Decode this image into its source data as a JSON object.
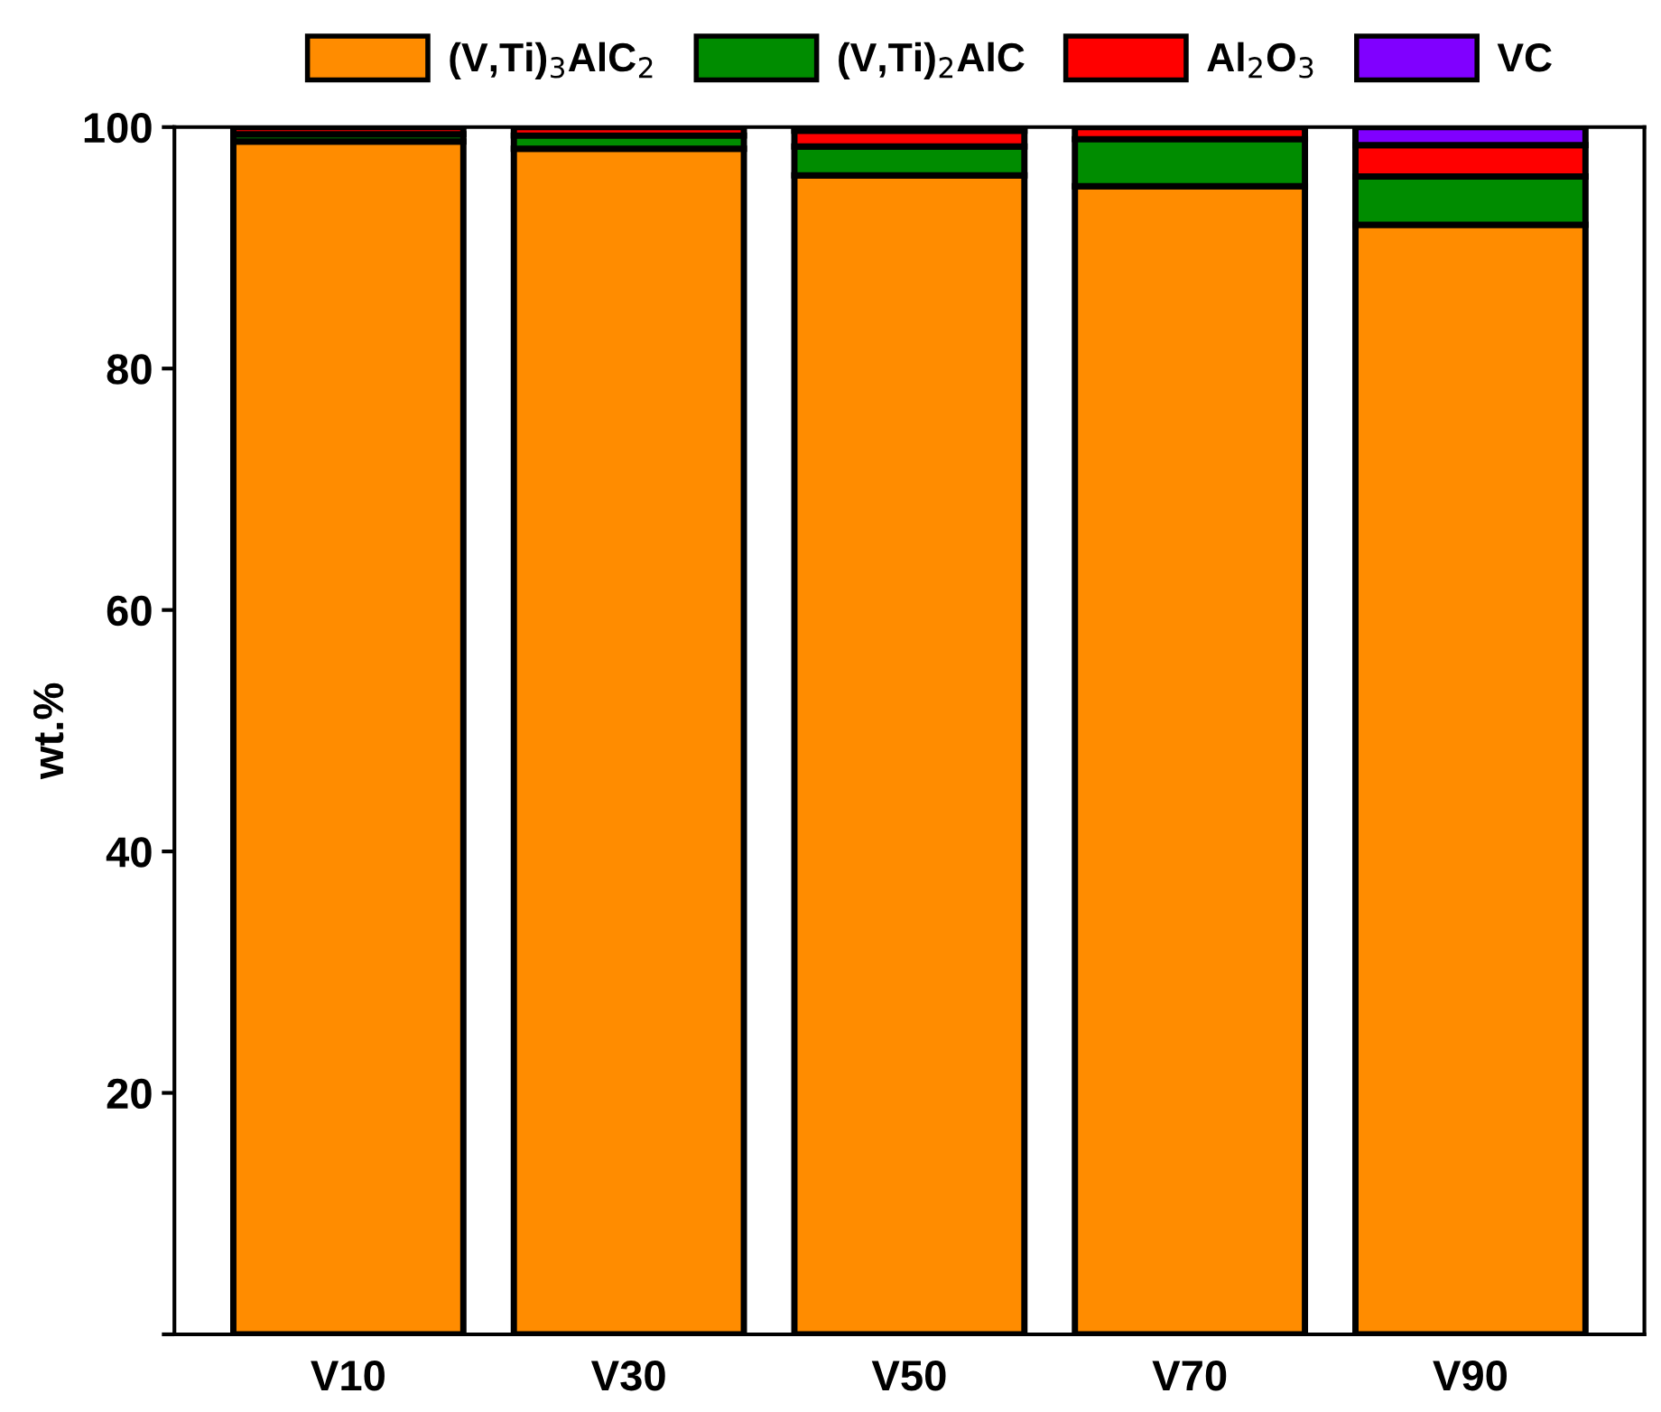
{
  "chart_data": {
    "type": "bar",
    "stacked": true,
    "ylabel": "wt.%",
    "categories": [
      "V10",
      "V30",
      "V50",
      "V70",
      "V90"
    ],
    "series": [
      {
        "name": "(V,Ti)$_{3}$AlC$_{2}$",
        "color": "#ff8c00",
        "values": [
          98.8,
          98.2,
          96.0,
          95.1,
          91.9
        ]
      },
      {
        "name": "(V,Ti)$_{2}$AlC",
        "color": "#008c00",
        "values": [
          0.6,
          1.1,
          2.4,
          3.9,
          4.0
        ]
      },
      {
        "name": "Al$_{2}$O$_{3}$",
        "color": "#ff0000",
        "values": [
          0.6,
          0.7,
          1.3,
          1.0,
          2.6
        ]
      },
      {
        "name": "VC",
        "color": "#8000ff",
        "values": [
          null,
          null,
          0.3,
          null,
          1.5
        ]
      }
    ],
    "ylim": [
      0,
      100
    ],
    "yticks": [
      {
        "value": 0,
        "label": null
      },
      20,
      40,
      60,
      80,
      100
    ],
    "grid": false,
    "legend": "top"
  }
}
